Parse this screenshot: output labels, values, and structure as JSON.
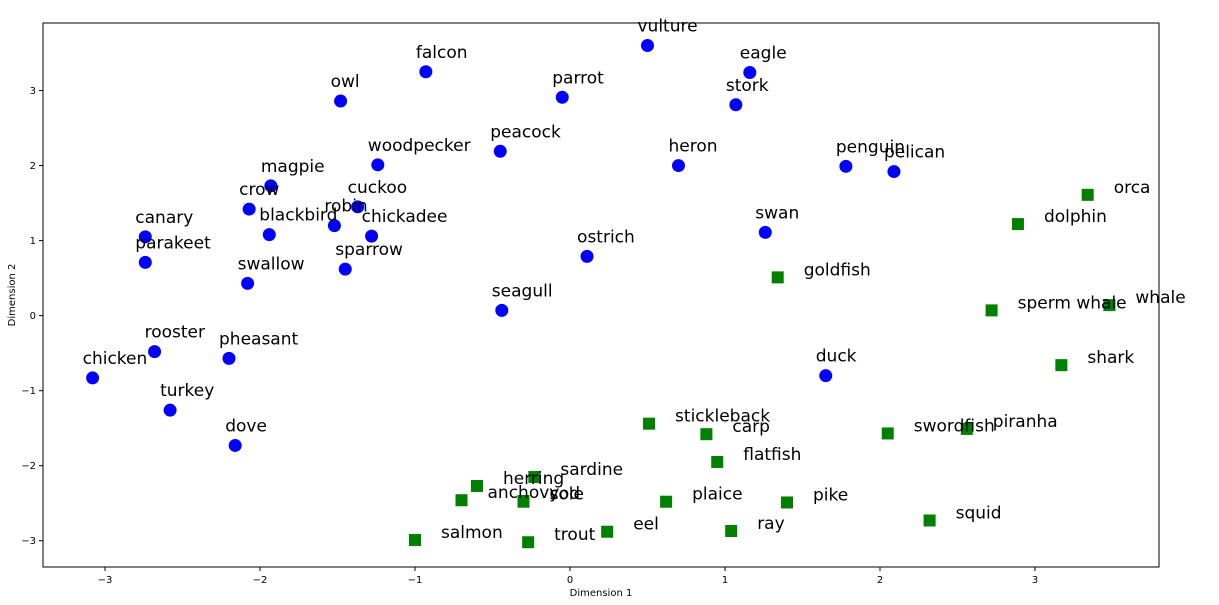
{
  "chart_data": {
    "type": "scatter",
    "title": "",
    "xlabel": "Dimension 1",
    "ylabel": "Dimension 2",
    "xlim": [
      -3.4,
      3.8
    ],
    "ylim": [
      -3.35,
      3.9
    ],
    "xticks": [
      -3,
      -2,
      -1,
      0,
      1,
      2,
      3
    ],
    "yticks": [
      -3,
      -2,
      -1,
      0,
      1,
      2,
      3
    ],
    "xtick_labels": [
      "−3",
      "−2",
      "−1",
      "0",
      "1",
      "2",
      "3"
    ],
    "ytick_labels": [
      "−3",
      "−2",
      "−1",
      "0",
      "1",
      "2",
      "3"
    ],
    "grid": false,
    "series": [
      {
        "marker": "circle",
        "color": "#0000ff",
        "points": [
          {
            "label": "vulture",
            "x": 0.5,
            "y": 3.6
          },
          {
            "label": "falcon",
            "x": -0.93,
            "y": 3.25
          },
          {
            "label": "eagle",
            "x": 1.16,
            "y": 3.24
          },
          {
            "label": "owl",
            "x": -1.48,
            "y": 2.86
          },
          {
            "label": "parrot",
            "x": -0.05,
            "y": 2.91
          },
          {
            "label": "stork",
            "x": 1.07,
            "y": 2.81
          },
          {
            "label": "woodpecker",
            "x": -1.24,
            "y": 2.01
          },
          {
            "label": "peacock",
            "x": -0.45,
            "y": 2.19
          },
          {
            "label": "heron",
            "x": 0.7,
            "y": 2.0
          },
          {
            "label": "penguin",
            "x": 1.78,
            "y": 1.99
          },
          {
            "label": "pelican",
            "x": 2.09,
            "y": 1.92
          },
          {
            "label": "magpie",
            "x": -1.93,
            "y": 1.73
          },
          {
            "label": "crow",
            "x": -2.07,
            "y": 1.42
          },
          {
            "label": "cuckoo",
            "x": -1.37,
            "y": 1.45
          },
          {
            "label": "robin",
            "x": -1.52,
            "y": 1.2
          },
          {
            "label": "blackbird",
            "x": -1.94,
            "y": 1.08
          },
          {
            "label": "chickadee",
            "x": -1.28,
            "y": 1.06
          },
          {
            "label": "canary",
            "x": -2.74,
            "y": 1.05
          },
          {
            "label": "parakeet",
            "x": -2.74,
            "y": 0.71
          },
          {
            "label": "swan",
            "x": 1.26,
            "y": 1.11
          },
          {
            "label": "ostrich",
            "x": 0.11,
            "y": 0.79
          },
          {
            "label": "sparrow",
            "x": -1.45,
            "y": 0.62
          },
          {
            "label": "swallow",
            "x": -2.08,
            "y": 0.43
          },
          {
            "label": "seagull",
            "x": -0.44,
            "y": 0.07
          },
          {
            "label": "rooster",
            "x": -2.68,
            "y": -0.48
          },
          {
            "label": "pheasant",
            "x": -2.2,
            "y": -0.57
          },
          {
            "label": "chicken",
            "x": -3.08,
            "y": -0.83
          },
          {
            "label": "duck",
            "x": 1.65,
            "y": -0.8
          },
          {
            "label": "turkey",
            "x": -2.58,
            "y": -1.26
          },
          {
            "label": "dove",
            "x": -2.16,
            "y": -1.73
          }
        ]
      },
      {
        "marker": "square",
        "color": "#008000",
        "points": [
          {
            "label": "orca",
            "x": 3.34,
            "y": 1.61
          },
          {
            "label": "dolphin",
            "x": 2.89,
            "y": 1.22
          },
          {
            "label": "goldfish",
            "x": 1.34,
            "y": 0.51
          },
          {
            "label": "sperm whale",
            "x": 2.72,
            "y": 0.07
          },
          {
            "label": "whale",
            "x": 3.48,
            "y": 0.14
          },
          {
            "label": "shark",
            "x": 3.17,
            "y": -0.66
          },
          {
            "label": "stickleback",
            "x": 0.51,
            "y": -1.44
          },
          {
            "label": "carp",
            "x": 0.88,
            "y": -1.58
          },
          {
            "label": "swordfish",
            "x": 2.05,
            "y": -1.57
          },
          {
            "label": "piranha",
            "x": 2.56,
            "y": -1.51
          },
          {
            "label": "flatfish",
            "x": 0.95,
            "y": -1.95
          },
          {
            "label": "sardine",
            "x": -0.23,
            "y": -2.15
          },
          {
            "label": "herring",
            "x": -0.6,
            "y": -2.27
          },
          {
            "label": "cod",
            "x": -0.3,
            "y": -2.47
          },
          {
            "label": "anchovy",
            "x": -0.7,
            "y": -2.46
          },
          {
            "label": "sole",
            "x": -0.3,
            "y": -2.48
          },
          {
            "label": "plaice",
            "x": 0.62,
            "y": -2.48
          },
          {
            "label": "pike",
            "x": 1.4,
            "y": -2.49
          },
          {
            "label": "squid",
            "x": 2.32,
            "y": -2.73
          },
          {
            "label": "eel",
            "x": 0.24,
            "y": -2.88
          },
          {
            "label": "ray",
            "x": 1.04,
            "y": -2.87
          },
          {
            "label": "salmon",
            "x": -1.0,
            "y": -2.99
          },
          {
            "label": "trout",
            "x": -0.27,
            "y": -3.02
          }
        ]
      }
    ]
  }
}
